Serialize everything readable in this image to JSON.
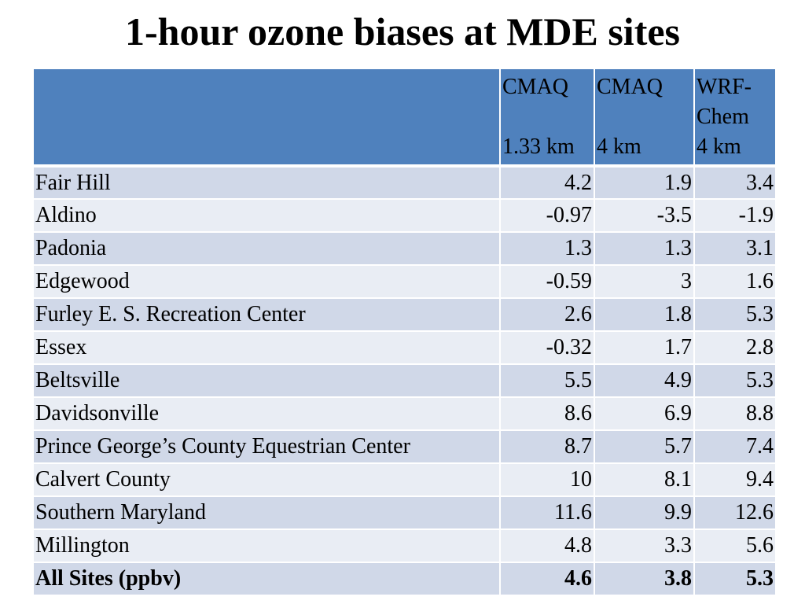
{
  "title": "1-hour ozone biases at MDE sites",
  "table": {
    "header": {
      "col0": "",
      "col1": {
        "line1": "CMAQ",
        "line2": "",
        "line3": "1.33 km"
      },
      "col2": {
        "line1": "CMAQ",
        "line2": "",
        "line3": "4 km"
      },
      "col3": {
        "line1": "WRF-",
        "line2": "Chem",
        "line3": "4 km"
      }
    },
    "rows": [
      {
        "site": "Fair Hill",
        "cmaq133": "4.2",
        "cmaq4": "1.9",
        "wrfchem4": "3.4"
      },
      {
        "site": "Aldino",
        "cmaq133": "-0.97",
        "cmaq4": "-3.5",
        "wrfchem4": "-1.9"
      },
      {
        "site": "Padonia",
        "cmaq133": "1.3",
        "cmaq4": "1.3",
        "wrfchem4": "3.1"
      },
      {
        "site": "Edgewood",
        "cmaq133": "-0.59",
        "cmaq4": "3",
        "wrfchem4": "1.6"
      },
      {
        "site": "Furley E. S. Recreation Center",
        "cmaq133": "2.6",
        "cmaq4": "1.8",
        "wrfchem4": "5.3"
      },
      {
        "site": "Essex",
        "cmaq133": "-0.32",
        "cmaq4": "1.7",
        "wrfchem4": "2.8"
      },
      {
        "site": "Beltsville",
        "cmaq133": "5.5",
        "cmaq4": "4.9",
        "wrfchem4": "5.3"
      },
      {
        "site": "Davidsonville",
        "cmaq133": "8.6",
        "cmaq4": "6.9",
        "wrfchem4": "8.8"
      },
      {
        "site": "Prince George’s County Equestrian Center",
        "cmaq133": "8.7",
        "cmaq4": "5.7",
        "wrfchem4": "7.4"
      },
      {
        "site": "Calvert County",
        "cmaq133": "10",
        "cmaq4": "8.1",
        "wrfchem4": "9.4"
      },
      {
        "site": "Southern Maryland",
        "cmaq133": "11.6",
        "cmaq4": "9.9",
        "wrfchem4": "12.6"
      },
      {
        "site": "Millington",
        "cmaq133": "4.8",
        "cmaq4": "3.3",
        "wrfchem4": "5.6"
      },
      {
        "site": "All Sites (ppbv)",
        "cmaq133": "4.6",
        "cmaq4": "3.8",
        "wrfchem4": "5.3"
      }
    ]
  },
  "colors": {
    "header_bg": "#4f81bd",
    "row_band_dark": "#d0d8e8",
    "row_band_light": "#e9edf4"
  }
}
